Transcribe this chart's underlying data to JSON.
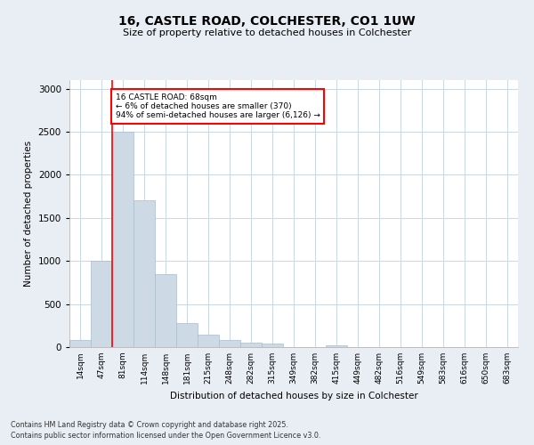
{
  "title_line1": "16, CASTLE ROAD, COLCHESTER, CO1 1UW",
  "title_line2": "Size of property relative to detached houses in Colchester",
  "xlabel": "Distribution of detached houses by size in Colchester",
  "ylabel": "Number of detached properties",
  "bin_labels": [
    "14sqm",
    "47sqm",
    "81sqm",
    "114sqm",
    "148sqm",
    "181sqm",
    "215sqm",
    "248sqm",
    "282sqm",
    "315sqm",
    "349sqm",
    "382sqm",
    "415sqm",
    "449sqm",
    "482sqm",
    "516sqm",
    "549sqm",
    "583sqm",
    "616sqm",
    "650sqm",
    "683sqm"
  ],
  "bar_heights": [
    80,
    1000,
    2500,
    1700,
    850,
    280,
    140,
    80,
    50,
    40,
    0,
    0,
    20,
    0,
    0,
    0,
    0,
    0,
    0,
    0,
    0
  ],
  "bar_color": "#cdd9e5",
  "bar_edge_color": "#aabcce",
  "vline_x": 1.5,
  "vline_color": "red",
  "annotation_text": "16 CASTLE ROAD: 68sqm\n← 6% of detached houses are smaller (370)\n94% of semi-detached houses are larger (6,126) →",
  "annotation_box_color": "white",
  "annotation_box_edge_color": "red",
  "ylim": [
    0,
    3100
  ],
  "yticks": [
    0,
    500,
    1000,
    1500,
    2000,
    2500,
    3000
  ],
  "footnote1": "Contains HM Land Registry data © Crown copyright and database right 2025.",
  "footnote2": "Contains public sector information licensed under the Open Government Licence v3.0.",
  "background_color": "#e8eef4",
  "plot_background_color": "#ffffff",
  "grid_color": "#c8d8e8"
}
